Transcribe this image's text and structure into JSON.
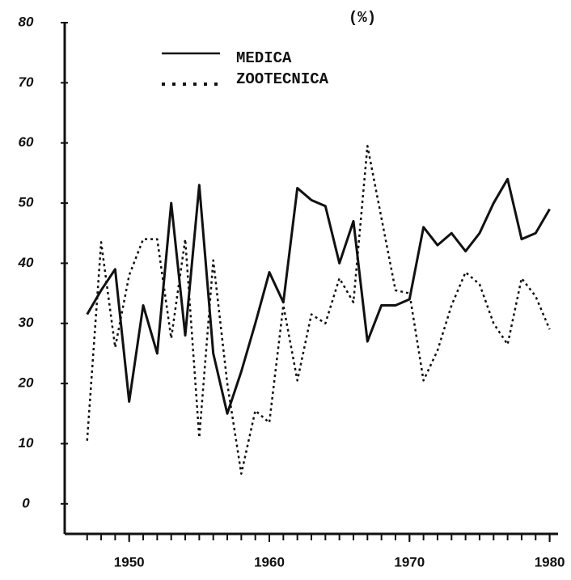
{
  "chart_data": {
    "type": "line",
    "y_unit": "(%)",
    "x": [
      1947,
      1948,
      1949,
      1950,
      1951,
      1952,
      1953,
      1954,
      1955,
      1956,
      1957,
      1958,
      1959,
      1960,
      1961,
      1962,
      1963,
      1964,
      1965,
      1966,
      1967,
      1968,
      1969,
      1970,
      1971,
      1972,
      1973,
      1974,
      1975,
      1976,
      1977,
      1978,
      1979,
      1980
    ],
    "series": [
      {
        "name": "MEDICA",
        "color": "#111111",
        "style": "solid",
        "values": [
          31.5,
          35.5,
          39,
          17,
          33,
          25,
          50,
          28,
          53,
          25,
          15,
          22,
          30,
          38.5,
          33.5,
          52.5,
          50.5,
          49.5,
          40,
          47,
          27,
          33,
          33,
          34,
          46,
          43,
          45,
          42,
          45,
          50,
          54,
          44,
          45,
          49
        ]
      },
      {
        "name": "ZOOTECNICA",
        "color": "#111111",
        "style": "dotted",
        "values": [
          10.5,
          43.5,
          26,
          38,
          44,
          44,
          27.5,
          44,
          11,
          40.5,
          20,
          5,
          15.5,
          13.5,
          33,
          20.5,
          31.5,
          30,
          37.5,
          33.5,
          59.5,
          47.5,
          35.5,
          35,
          20.5,
          25.5,
          33,
          38.5,
          36.5,
          30,
          26.5,
          37.5,
          34.5,
          29
        ]
      }
    ],
    "xlim": [
      1945.4,
      1980.6
    ],
    "xticks": [
      1950,
      1960,
      1970,
      1980
    ],
    "ylim": [
      -5,
      80
    ],
    "yticks": [
      0,
      10,
      20,
      30,
      40,
      50,
      60,
      70,
      80
    ],
    "legend": "top"
  }
}
